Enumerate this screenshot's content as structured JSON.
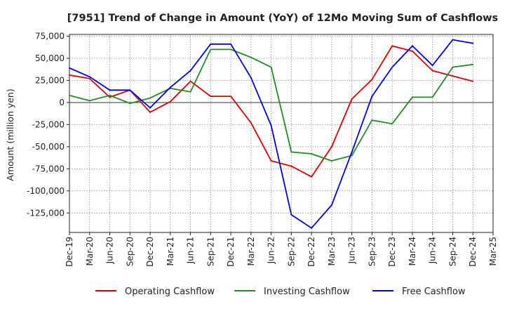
{
  "chart_data": {
    "type": "line",
    "title": "[7951]  Trend of Change in Amount (YoY) of 12Mo Moving Sum of Cashflows",
    "xlabel": "",
    "ylabel": "Amount (million yen)",
    "ylim": [
      -147000,
      77000
    ],
    "yticks": [
      75000,
      50000,
      25000,
      0,
      -25000,
      -50000,
      -75000,
      -100000,
      -125000
    ],
    "ytick_labels": [
      "75,000",
      "50,000",
      "25,000",
      "0",
      "-25,000",
      "-50,000",
      "-75,000",
      "-100,000",
      "-125,000"
    ],
    "categories": [
      "Dec-19",
      "Mar-20",
      "Jun-20",
      "Sep-20",
      "Dec-20",
      "Mar-21",
      "Jun-21",
      "Sep-21",
      "Dec-21",
      "Mar-22",
      "Jun-22",
      "Sep-22",
      "Dec-22",
      "Mar-23",
      "Jun-23",
      "Sep-23",
      "Dec-23",
      "Mar-24",
      "Jun-24",
      "Sep-24",
      "Dec-24",
      "Mar-25"
    ],
    "grid": true,
    "legend_position": "bottom",
    "series": [
      {
        "name": "Operating Cashflow",
        "color": "#dd0000",
        "values": [
          31000,
          27000,
          6000,
          14000,
          -11000,
          1000,
          24000,
          7000,
          7000,
          -23000,
          -66000,
          -72000,
          -84000,
          -50000,
          4000,
          26000,
          64000,
          58000,
          36000,
          30000,
          24000,
          null
        ]
      },
      {
        "name": "Investing Cashflow",
        "color": "#228B22",
        "values": [
          8000,
          2000,
          8000,
          -1000,
          5000,
          16000,
          12000,
          60000,
          60000,
          51000,
          40000,
          -56000,
          -58000,
          -66000,
          -60000,
          -20000,
          -24000,
          6000,
          6000,
          40000,
          43000,
          null
        ]
      },
      {
        "name": "Free Cashflow",
        "color": "#0000dd",
        "values": [
          39000,
          29000,
          14000,
          14000,
          -6000,
          17000,
          36000,
          66000,
          66000,
          28000,
          -26000,
          -127000,
          -142000,
          -116000,
          -56000,
          7000,
          40000,
          64000,
          42000,
          71000,
          67000,
          null
        ]
      }
    ]
  }
}
